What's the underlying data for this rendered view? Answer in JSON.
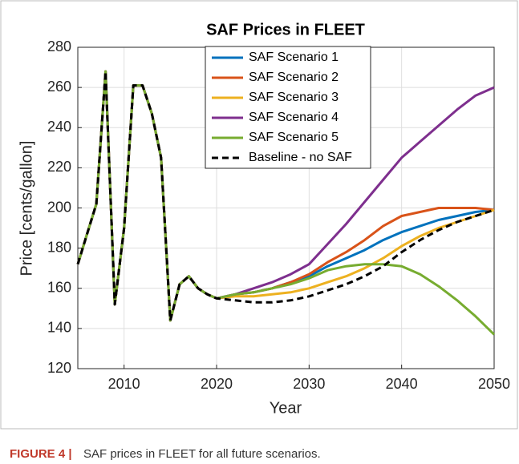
{
  "chart_data": {
    "type": "line",
    "title": "SAF Prices in FLEET",
    "x_label": "Year",
    "y_label": "Price [cents/gallon]",
    "x": [
      2005,
      2006,
      2007,
      2008,
      2009,
      2010,
      2011,
      2012,
      2013,
      2014,
      2015,
      2016,
      2017,
      2018,
      2019,
      2020,
      2022,
      2024,
      2026,
      2028,
      2030,
      2032,
      2034,
      2036,
      2038,
      2040,
      2042,
      2044,
      2046,
      2048,
      2050
    ],
    "series": [
      {
        "name": "SAF Scenario 1",
        "color": "#0072BD",
        "values": [
          172,
          187,
          202,
          268,
          152,
          190,
          261,
          261,
          247,
          225,
          144,
          162,
          166,
          160,
          157,
          155,
          157,
          158,
          160,
          163,
          166,
          171,
          175,
          179,
          184,
          188,
          191,
          194,
          196,
          198,
          199
        ]
      },
      {
        "name": "SAF Scenario 2",
        "color": "#D95319",
        "values": [
          172,
          187,
          202,
          268,
          152,
          190,
          261,
          261,
          247,
          225,
          144,
          162,
          166,
          160,
          157,
          155,
          157,
          158,
          160,
          163,
          167,
          173,
          178,
          184,
          191,
          196,
          198,
          200,
          200,
          200,
          199
        ]
      },
      {
        "name": "SAF Scenario 3",
        "color": "#EDB120",
        "values": [
          172,
          187,
          202,
          268,
          152,
          190,
          261,
          261,
          247,
          225,
          144,
          162,
          166,
          160,
          157,
          155,
          156,
          156,
          157,
          158,
          160,
          163,
          166,
          170,
          175,
          181,
          186,
          190,
          193,
          196,
          199
        ]
      },
      {
        "name": "SAF Scenario 4",
        "color": "#7E2F8E",
        "values": [
          172,
          187,
          202,
          268,
          152,
          190,
          261,
          261,
          247,
          225,
          144,
          162,
          166,
          160,
          157,
          155,
          157,
          160,
          163,
          167,
          172,
          182,
          192,
          203,
          214,
          225,
          233,
          241,
          249,
          256,
          260
        ]
      },
      {
        "name": "SAF Scenario 5",
        "color": "#77AC30",
        "values": [
          172,
          187,
          202,
          268,
          152,
          190,
          261,
          261,
          247,
          225,
          144,
          162,
          166,
          160,
          157,
          155,
          157,
          158,
          160,
          162,
          165,
          169,
          171,
          172,
          172,
          171,
          167,
          161,
          154,
          146,
          137
        ]
      },
      {
        "name": "Baseline - no SAF",
        "color": "#000000",
        "line_style": "dashed",
        "values": [
          172,
          187,
          202,
          268,
          152,
          190,
          261,
          261,
          247,
          225,
          144,
          162,
          166,
          160,
          157,
          155,
          154,
          153,
          153,
          154,
          156,
          159,
          162,
          166,
          171,
          178,
          184,
          189,
          193,
          196,
          199
        ]
      }
    ],
    "xlim": [
      2005,
      2050
    ],
    "xticks": [
      2010,
      2020,
      2030,
      2040,
      2050
    ],
    "ylim": [
      120,
      280
    ],
    "yticks": [
      120,
      140,
      160,
      180,
      200,
      220,
      240,
      260,
      280
    ],
    "grid": true,
    "legend_position": "north"
  },
  "caption": {
    "label": "FIGURE 4 |",
    "text": "SAF prices in FLEET for all future scenarios."
  }
}
